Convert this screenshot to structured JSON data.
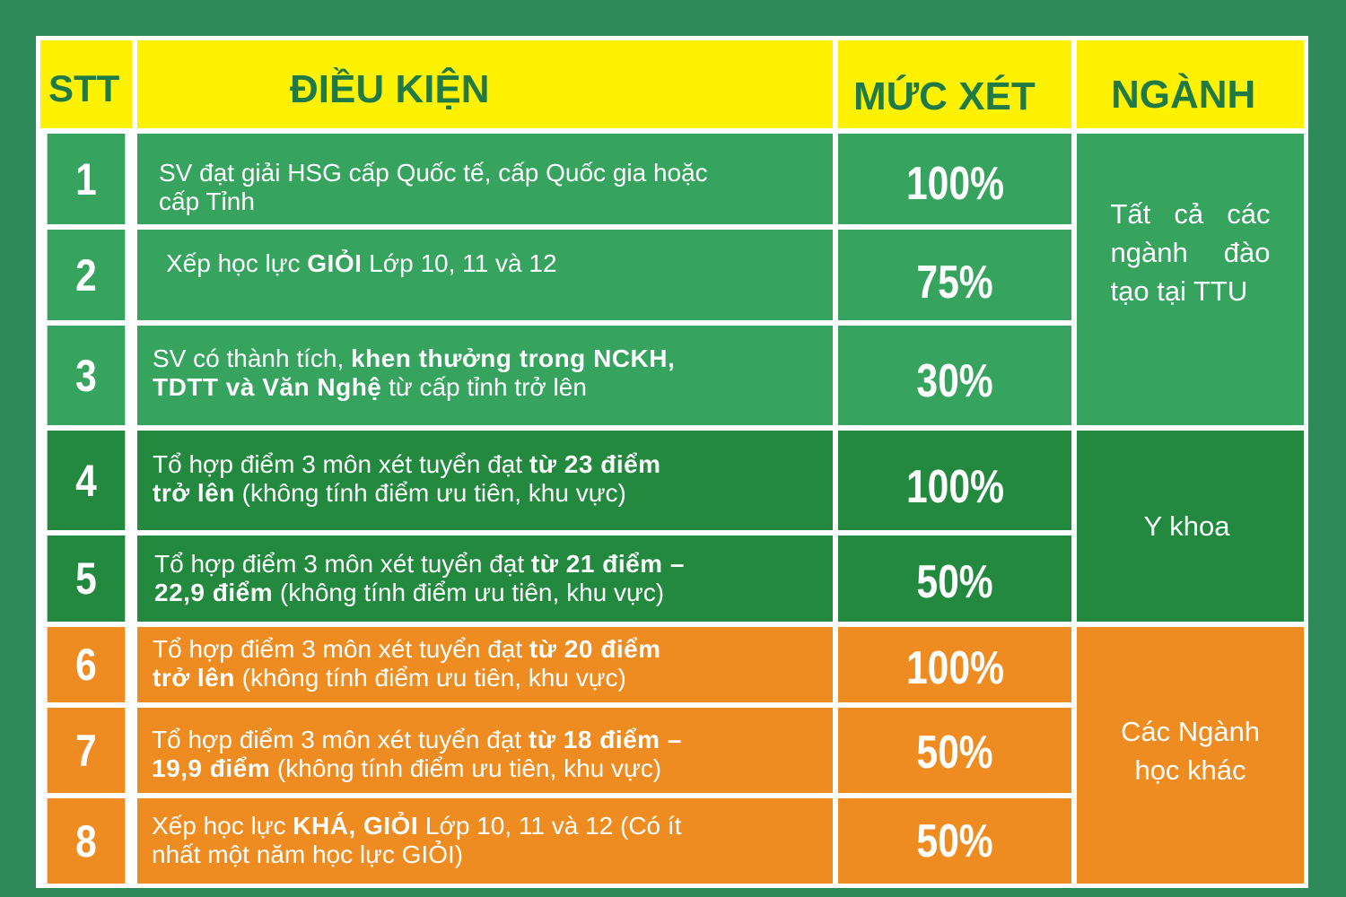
{
  "header": {
    "stt": "STT",
    "dieu_kien": "ĐIỀU KIỆN",
    "muc_xet": "MỨC XÉT",
    "nganh": "NGÀNH"
  },
  "rows": [
    {
      "stt": "1",
      "cond_a": "SV đạt giải HSG cấp Quốc tế, cấp Quốc gia hoặc",
      "cond_b": "cấp Tỉnh",
      "muc": "100%"
    },
    {
      "stt": "2",
      "cond_pre": "Xếp học lực ",
      "cond_bold": "GIỎI",
      "cond_post": " Lớp 10, 11 và 12",
      "muc": "75%"
    },
    {
      "stt": "3",
      "cond_pre": "SV có thành tích, ",
      "cond_bold": "khen thưởng trong NCKH,",
      "cond_bold2": "TDTT và Văn Nghệ",
      "cond_post": " từ cấp tỉnh trở lên",
      "muc": "30%"
    },
    {
      "stt": "4",
      "cond_pre": "Tổ hợp điểm 3 môn xét tuyển đạt ",
      "cond_bold": "từ 23 điểm",
      "cond_bold2": "trở lên",
      "cond_post": " (không tính điểm ưu tiên, khu vực)",
      "muc": "100%"
    },
    {
      "stt": "5",
      "cond_pre": "Tổ hợp điểm 3 môn xét tuyển đạt ",
      "cond_bold": "từ 21 điểm –",
      "cond_bold2": "22,9 điểm",
      "cond_post": " (không tính điểm ưu tiên, khu vực)",
      "muc": "50%"
    },
    {
      "stt": "6",
      "cond_pre": "Tổ hợp điểm 3 môn xét tuyển đạt ",
      "cond_bold": "từ 20 điểm",
      "cond_bold2": "trở lên",
      "cond_post": " (không tính điểm ưu tiên, khu vực)",
      "muc": "100%"
    },
    {
      "stt": "7",
      "cond_pre": "Tổ hợp điểm 3 môn xét tuyển đạt ",
      "cond_bold": "từ 18 điểm –",
      "cond_bold2": "19,9 điểm",
      "cond_post": " (không tính điểm ưu tiên, khu vực)",
      "muc": "50%"
    },
    {
      "stt": "8",
      "cond_pre": "Xếp học lực ",
      "cond_bold": "KHÁ, GIỎI",
      "cond_post": " Lớp 10, 11 và 12 (Có ít",
      "cond_line2": "nhất một năm học lực GIỎI)",
      "muc": "50%"
    }
  ],
  "nganh_groups": [
    {
      "lines": [
        "Tất cả các",
        "ngành đào",
        "tạo tại TTU"
      ]
    },
    {
      "lines": [
        "Y khoa"
      ]
    },
    {
      "lines": [
        "Các Ngành",
        "học khác"
      ]
    }
  ],
  "colors": {
    "background": "#2e8a5b",
    "header": "#fff200",
    "header_text": "#1f7a45",
    "green_light": "#36a45e",
    "green_dark": "#23893f",
    "orange": "#ee8c22"
  }
}
